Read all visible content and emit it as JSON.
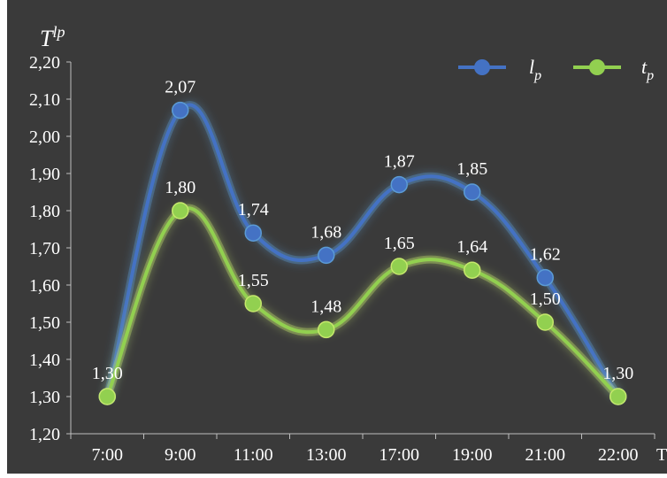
{
  "chart_data": {
    "type": "line",
    "title": "",
    "ylabel_main": "T",
    "ylabel_sup": "lp",
    "xlabel": "T",
    "categories": [
      "7:00",
      "9:00",
      "11:00",
      "13:00",
      "17:00",
      "19:00",
      "21:00",
      "22:00"
    ],
    "ylim": [
      1.2,
      2.2
    ],
    "yticks": [
      "1,20",
      "1,30",
      "1,40",
      "1,50",
      "1,60",
      "1,70",
      "1,80",
      "1,90",
      "2,00",
      "2,10",
      "2,20"
    ],
    "grid": false,
    "legend_position": "top-right",
    "series": [
      {
        "legend_main": "l",
        "legend_sub": "p",
        "color": "#4472c4",
        "glow": "#5b9bd5",
        "values": [
          1.3,
          2.07,
          1.74,
          1.68,
          1.87,
          1.85,
          1.62,
          1.3
        ],
        "labels": [
          "1,30",
          "2,07",
          "1,74",
          "1,68",
          "1,87",
          "1,85",
          "1,62",
          "1,30"
        ]
      },
      {
        "legend_main": "t",
        "legend_sub": "p",
        "color": "#92d050",
        "glow": "#c5e86c",
        "values": [
          1.3,
          1.8,
          1.55,
          1.48,
          1.65,
          1.64,
          1.5,
          1.3
        ],
        "labels": [
          "1,30",
          "1,80",
          "1,55",
          "1,48",
          "1,65",
          "1,64",
          "1,50",
          "1,30"
        ]
      }
    ],
    "background_color": "#3a3a3a",
    "axis_color": "#bfbfbf"
  }
}
